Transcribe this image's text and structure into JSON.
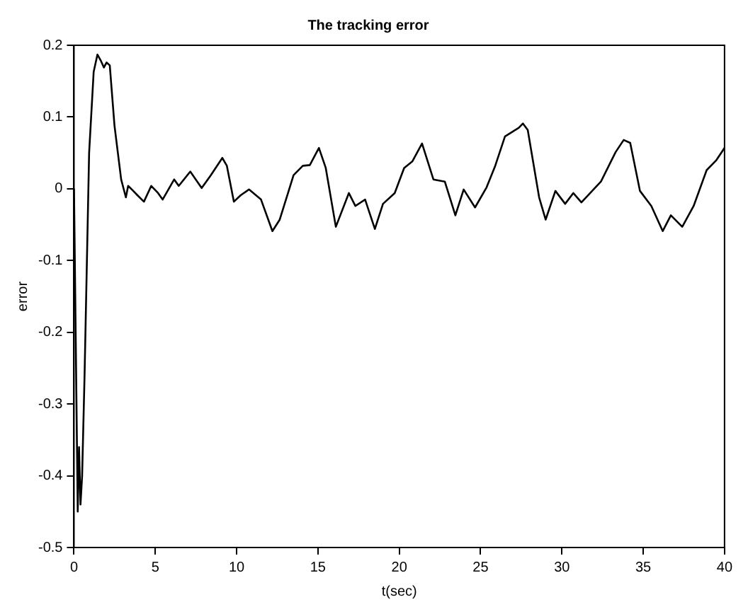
{
  "chart_data": {
    "type": "line",
    "title": "The tracking error",
    "xlabel": "t(sec)",
    "ylabel": "error",
    "x": [
      0,
      0.23,
      0.31,
      0.4,
      0.5,
      0.65,
      0.93,
      1.21,
      1.44,
      1.64,
      1.84,
      2.0,
      2.2,
      2.49,
      2.9,
      3.19,
      3.33,
      3.6,
      3.9,
      4.3,
      4.75,
      5.17,
      5.45,
      6.16,
      6.44,
      7.15,
      7.85,
      8.42,
      9.12,
      9.4,
      9.83,
      10.25,
      10.76,
      11.5,
      12.2,
      12.65,
      13.2,
      13.5,
      14.07,
      14.5,
      15.06,
      15.48,
      16.1,
      16.9,
      17.3,
      17.9,
      18.5,
      19.0,
      19.72,
      20.3,
      20.8,
      21.4,
      22.1,
      22.8,
      23.45,
      23.96,
      24.66,
      25.37,
      25.9,
      26.5,
      27.35,
      27.6,
      27.9,
      28.6,
      29.0,
      29.6,
      30.2,
      30.7,
      31.2,
      32.4,
      33.3,
      33.8,
      34.2,
      34.8,
      35.5,
      36.2,
      36.7,
      37.4,
      38.1,
      38.9,
      39.5,
      40
    ],
    "series": [
      {
        "color": "#000000",
        "values": [
          0,
          -0.45,
          -0.36,
          -0.44,
          -0.4,
          -0.26,
          0.05,
          0.163,
          0.187,
          0.179,
          0.169,
          0.176,
          0.172,
          0.088,
          0.013,
          -0.012,
          0.004,
          -0.002,
          -0.009,
          -0.018,
          0.004,
          -0.006,
          -0.015,
          0.013,
          0.004,
          0.024,
          0.001,
          0.019,
          0.043,
          0.032,
          -0.018,
          -0.009,
          -0.001,
          -0.015,
          -0.059,
          -0.043,
          -0.003,
          0.019,
          0.032,
          0.033,
          0.057,
          0.029,
          -0.053,
          -0.006,
          -0.024,
          -0.015,
          -0.056,
          -0.021,
          -0.006,
          0.029,
          0.038,
          0.063,
          0.013,
          0.01,
          -0.037,
          -0.001,
          -0.026,
          0.002,
          0.032,
          0.073,
          0.085,
          0.091,
          0.082,
          -0.012,
          -0.043,
          -0.003,
          -0.021,
          -0.006,
          -0.019,
          0.01,
          0.051,
          0.068,
          0.064,
          -0.003,
          -0.024,
          -0.059,
          -0.037,
          -0.053,
          -0.024,
          0.026,
          0.04,
          0.057
        ]
      }
    ],
    "xlim": [
      0,
      40
    ],
    "xticks": [
      0,
      5,
      10,
      15,
      20,
      25,
      30,
      35,
      40
    ],
    "ylim": [
      -0.5,
      0.2
    ],
    "yticks": [
      -0.5,
      -0.4,
      -0.3,
      -0.2,
      -0.1,
      0,
      0.1,
      0.2
    ],
    "grid": false,
    "legend": false,
    "marker": "none",
    "line_style": "solid"
  }
}
